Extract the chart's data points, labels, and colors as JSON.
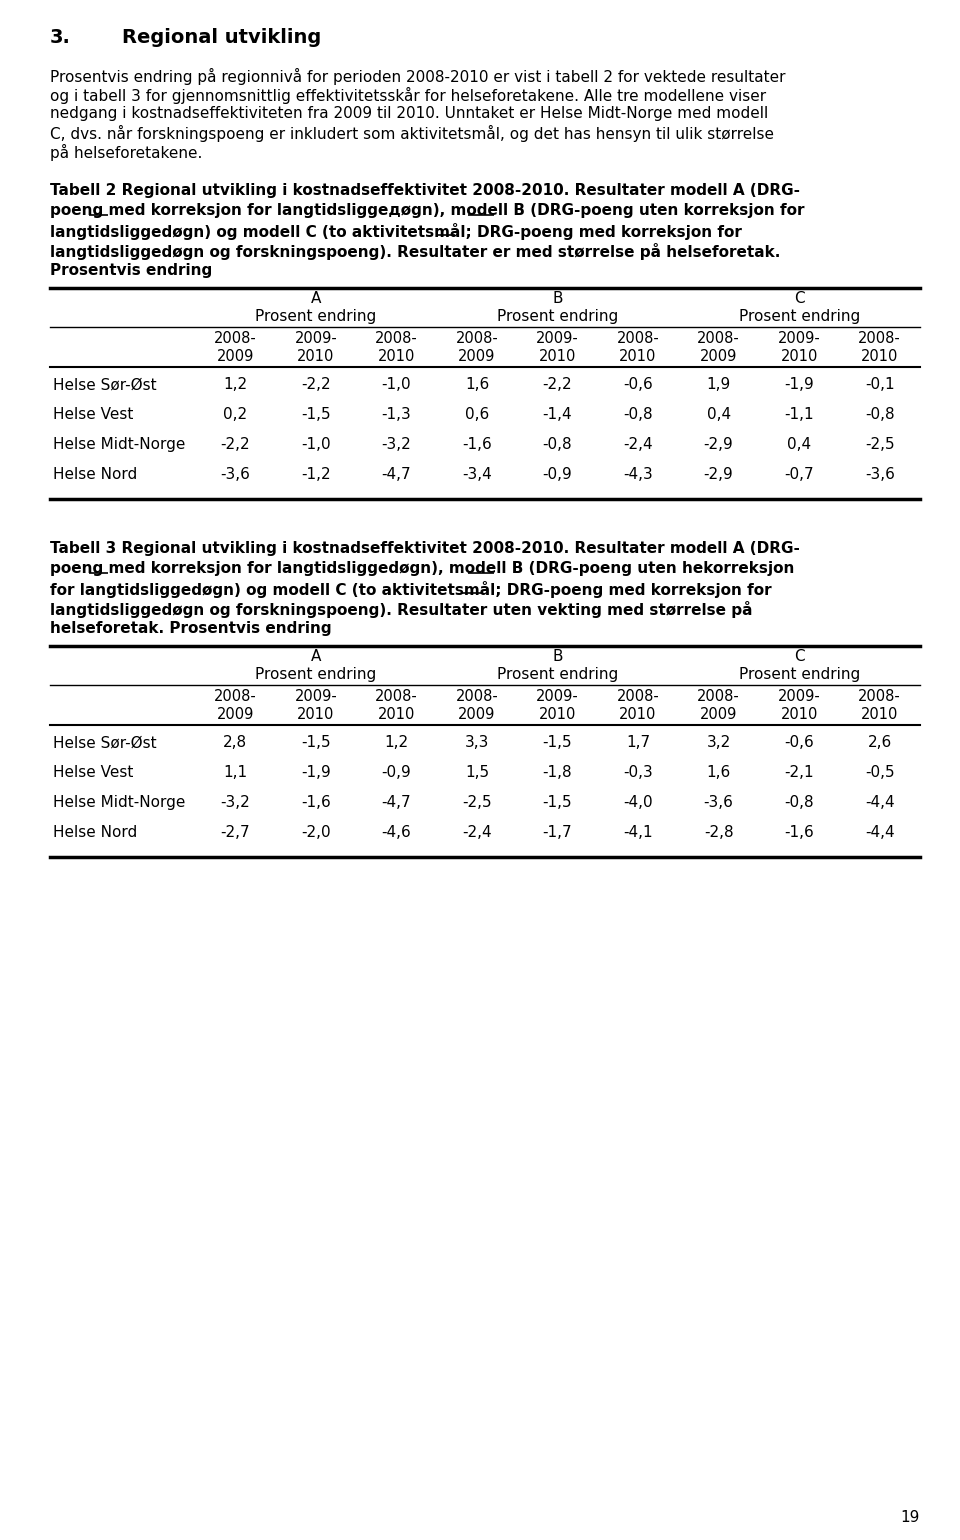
{
  "section_title_num": "3.",
  "section_title_text": "Regional utvikling",
  "paragraph_lines": [
    "Prosentvis endring på regionnivå for perioden 2008-2010 er vist i tabell 2 for vektede resultater",
    "og i tabell 3 for gjennomsnittlig effektivitetsskår for helseforetakene. Alle tre modellene viser",
    "nedgang i kostnadseffektiviteten fra 2009 til 2010. Unntaket er Helse Midt-Norge med modell",
    "C, dvs. når forskningspoeng er inkludert som aktivitetsmål, og det has hensyn til ulik størrelse",
    "på helseforetakene."
  ],
  "table2_title_lines": [
    "Tabell 2 Regional utvikling i kostnadseffektivitet 2008-2010. Resultater modell A (DRG-",
    "poeng med korreksjon for langtidsliggедøgn), modell B (DRG-poeng uten korreksjon for",
    "langtidsliggedøgn) og modell C (to aktivitetsmål; DRG-poeng med korreksjon for",
    "langtidsliggedøgn og forskningspoeng). Resultater er med størrelse på helseforetak.",
    "Prosentvis endring"
  ],
  "table2_underlines": [
    {
      "line": 1,
      "word": "med",
      "before": "poeng "
    },
    {
      "line": 1,
      "word": "uten",
      "before": "poeng med korreksjon for langtidsliggedøgn), modell B (DRG-poeng "
    },
    {
      "line": 2,
      "word": "med",
      "before": "langtidsliggedøgn) og modell C (to aktivitetsmål; DRG-poeng "
    }
  ],
  "table2_rows": [
    [
      "Helse Sør-Øst",
      "1,2",
      "-2,2",
      "-1,0",
      "1,6",
      "-2,2",
      "-0,6",
      "1,9",
      "-1,9",
      "-0,1"
    ],
    [
      "Helse Vest",
      "0,2",
      "-1,5",
      "-1,3",
      "0,6",
      "-1,4",
      "-0,8",
      "0,4",
      "-1,1",
      "-0,8"
    ],
    [
      "Helse Midt-Norge",
      "-2,2",
      "-1,0",
      "-3,2",
      "-1,6",
      "-0,8",
      "-2,4",
      "-2,9",
      "0,4",
      "-2,5"
    ],
    [
      "Helse Nord",
      "-3,6",
      "-1,2",
      "-4,7",
      "-3,4",
      "-0,9",
      "-4,3",
      "-2,9",
      "-0,7",
      "-3,6"
    ]
  ],
  "table3_title_lines": [
    "Tabell 3 Regional utvikling i kostnadseffektivitet 2008-2010. Resultater modell A (DRG-",
    "poeng med korreksjon for langtidsliggedøgn), modell B (DRG-poeng uten hekorreksjon",
    "for langtidsliggedøgn) og modell C (to aktivitetsmål; DRG-poeng med korreksjon for",
    "langtidsliggedøgn og forskningspoeng). Resultater uten vekting med størrelse på",
    "helseforetak. Prosentvis endring"
  ],
  "table3_underlines": [
    {
      "line": 1,
      "word": "med",
      "before": "poeng "
    },
    {
      "line": 1,
      "word": "uten",
      "before": "poeng med korreksjon for langtidsliggedøgn), modell B (DRG-poeng "
    },
    {
      "line": 2,
      "word": "med",
      "before": "for langtidsliggedøgn) og modell C (to aktivitetsmål; DRG-poeng "
    }
  ],
  "table3_rows": [
    [
      "Helse Sør-Øst",
      "2,8",
      "-1,5",
      "1,2",
      "3,3",
      "-1,5",
      "1,7",
      "3,2",
      "-0,6",
      "2,6"
    ],
    [
      "Helse Vest",
      "1,1",
      "-1,9",
      "-0,9",
      "1,5",
      "-1,8",
      "-0,3",
      "1,6",
      "-2,1",
      "-0,5"
    ],
    [
      "Helse Midt-Norge",
      "-3,2",
      "-1,6",
      "-4,7",
      "-2,5",
      "-1,5",
      "-4,0",
      "-3,6",
      "-0,8",
      "-4,4"
    ],
    [
      "Helse Nord",
      "-2,7",
      "-2,0",
      "-4,6",
      "-2,4",
      "-1,7",
      "-4,1",
      "-2,8",
      "-1,6",
      "-4,4"
    ]
  ],
  "page_number": "19",
  "bg_color": "#ffffff",
  "text_color": "#000000"
}
